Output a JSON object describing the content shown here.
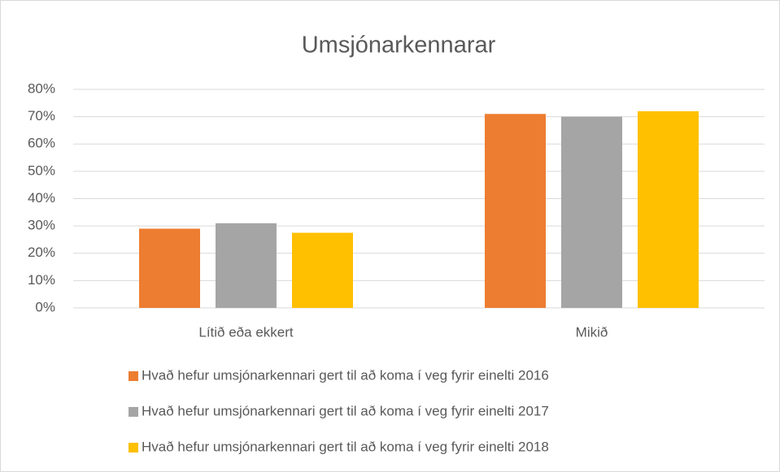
{
  "chart_data": {
    "type": "bar",
    "title": "Umsjónarkennarar",
    "categories": [
      "Lítið eða ekkert",
      "Mikið"
    ],
    "series": [
      {
        "name": "Hvað hefur umsjónarkennari gert til að koma í veg fyrir einelti 2016",
        "color": "#ed7d31",
        "values": [
          29,
          71
        ]
      },
      {
        "name": "Hvað hefur umsjónarkennari gert til að koma í veg fyrir einelti 2017",
        "color": "#a5a5a5",
        "values": [
          31,
          70
        ]
      },
      {
        "name": "Hvað hefur umsjónarkennari gert til að koma í veg fyrir einelti 2018",
        "color": "#ffc000",
        "values": [
          27.5,
          72
        ]
      }
    ],
    "ylim": [
      0,
      80
    ],
    "yticks": [
      {
        "value": 0,
        "label": "0%"
      },
      {
        "value": 10,
        "label": "10%"
      },
      {
        "value": 20,
        "label": "20%"
      },
      {
        "value": 30,
        "label": "30%"
      },
      {
        "value": 40,
        "label": "40%"
      },
      {
        "value": 50,
        "label": "50%"
      },
      {
        "value": 60,
        "label": "60%"
      },
      {
        "value": 70,
        "label": "70%"
      },
      {
        "value": 80,
        "label": "80%"
      }
    ],
    "grid": true,
    "legend": "bottom"
  }
}
